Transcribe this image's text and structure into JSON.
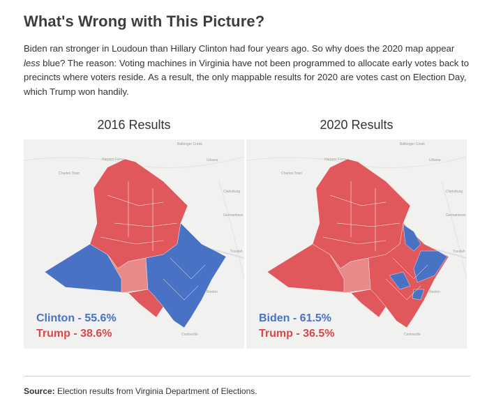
{
  "headline": "What's Wrong with This Picture?",
  "intro": {
    "part1": "Biden ran stronger in Loudoun than Hillary Clinton had four years ago. So why does the 2020 map appear ",
    "italic": "less",
    "part2": " blue? The reason: Voting machines in Virginia have not been programmed to allocate early votes back to precincts where voters reside. As a result, the only mappable results for 2020 are votes cast on Election Day, which Trump won handily."
  },
  "maps": [
    {
      "title": "2016 Results",
      "dem_label": "Clinton - 55.6%",
      "rep_label": "Trump - 38.6%",
      "dem_share": 55.6,
      "rep_share": 38.6
    },
    {
      "title": "2020 Results",
      "dem_label": "Biden - 61.5%",
      "rep_label": "Trump - 36.5%",
      "dem_share": 61.5,
      "rep_share": 36.5
    }
  ],
  "place_labels": {
    "ballenger_creek": "Ballenger Creek",
    "harpers_ferry": "Harpers Ferry",
    "charles_town": "Charles Town",
    "urbana": "Urbana",
    "clarksburg": "Clarksburg",
    "germantown": "Germantown",
    "travilah": "Travilah",
    "reston": "Reston",
    "centreville": "Centreville"
  },
  "colors": {
    "dem": "#4a72c4",
    "rep": "#e0585c",
    "rep_light": "#e98a8a",
    "basemap": "#f1f1ef"
  },
  "source": {
    "label": "Source:",
    "text": " Election results from Virginia Department of Elections."
  }
}
